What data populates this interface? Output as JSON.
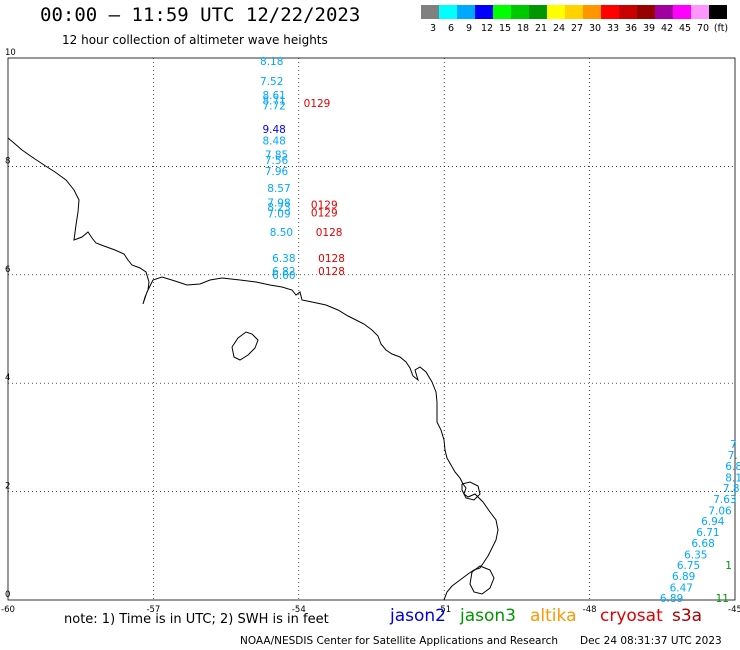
{
  "header": {
    "title": "00:00 – 11:59 UTC 12/22/2023",
    "subtitle": "12 hour collection of altimeter wave heights"
  },
  "legend": {
    "unit": "(ft)",
    "bins": [
      {
        "label": "3",
        "color": "#808080"
      },
      {
        "label": "6",
        "color": "#00ffff"
      },
      {
        "label": "9",
        "color": "#00a8ff"
      },
      {
        "label": "12",
        "color": "#0000ff"
      },
      {
        "label": "15",
        "color": "#00ff00"
      },
      {
        "label": "18",
        "color": "#00c800"
      },
      {
        "label": "21",
        "color": "#009600"
      },
      {
        "label": "24",
        "color": "#ffff00"
      },
      {
        "label": "27",
        "color": "#ffd200"
      },
      {
        "label": "30",
        "color": "#ff9600"
      },
      {
        "label": "33",
        "color": "#ff0000"
      },
      {
        "label": "36",
        "color": "#c80000"
      },
      {
        "label": "39",
        "color": "#960000"
      },
      {
        "label": "42",
        "color": "#a000a0"
      },
      {
        "label": "45",
        "color": "#ff00ff"
      },
      {
        "label": "70",
        "color": "#ff96ff"
      },
      {
        "label": "",
        "color": "#000000"
      }
    ]
  },
  "map": {
    "lon_range": [
      -60,
      -45
    ],
    "lat_range": [
      0,
      10
    ],
    "lon_ticks": [
      "-60",
      "-57",
      "-54",
      "-51",
      "-48",
      "-45"
    ],
    "lat_ticks": [
      "0",
      "2",
      "4",
      "6",
      "8",
      "10"
    ]
  },
  "observations": [
    {
      "text": "8.18",
      "lon": -54.8,
      "lat": 9.87,
      "color": "#00a8ff"
    },
    {
      "text": "7.52",
      "lon": -54.8,
      "lat": 9.5,
      "color": "#00a8ff"
    },
    {
      "text": "8.61",
      "lon": -54.75,
      "lat": 9.24,
      "color": "#00a8ff"
    },
    {
      "text": "8.71",
      "lon": -54.75,
      "lat": 9.14,
      "color": "#00a8ff"
    },
    {
      "text": "7.72",
      "lon": -54.75,
      "lat": 9.05,
      "color": "#00a8ff"
    },
    {
      "text": "0129",
      "lon": -53.9,
      "lat": 9.1,
      "color": "#e00000"
    },
    {
      "text": "9.48",
      "lon": -54.75,
      "lat": 8.62,
      "color": "#0000ff"
    },
    {
      "text": "8.48",
      "lon": -54.75,
      "lat": 8.4,
      "color": "#00a8ff"
    },
    {
      "text": "7.85",
      "lon": -54.7,
      "lat": 8.15,
      "color": "#00a8ff"
    },
    {
      "text": "7.56",
      "lon": -54.7,
      "lat": 8.04,
      "color": "#00a8ff"
    },
    {
      "text": "7.96",
      "lon": -54.7,
      "lat": 7.84,
      "color": "#00a8ff"
    },
    {
      "text": "8.57",
      "lon": -54.65,
      "lat": 7.53,
      "color": "#00a8ff"
    },
    {
      "text": "7.98",
      "lon": -54.65,
      "lat": 7.26,
      "color": "#00a8ff"
    },
    {
      "text": "8.23",
      "lon": -54.65,
      "lat": 7.18,
      "color": "#00a8ff"
    },
    {
      "text": "7.09",
      "lon": -54.65,
      "lat": 7.06,
      "color": "#00a8ff"
    },
    {
      "text": "0129",
      "lon": -53.75,
      "lat": 7.22,
      "color": "#e00000"
    },
    {
      "text": "0129",
      "lon": -53.75,
      "lat": 7.08,
      "color": "#e00000"
    },
    {
      "text": "8.50",
      "lon": -54.6,
      "lat": 6.72,
      "color": "#00a8ff"
    },
    {
      "text": "0128",
      "lon": -53.65,
      "lat": 6.72,
      "color": "#e00000"
    },
    {
      "text": "6.38",
      "lon": -54.55,
      "lat": 6.24,
      "color": "#00a8ff"
    },
    {
      "text": "0128",
      "lon": -53.6,
      "lat": 6.24,
      "color": "#e00000"
    },
    {
      "text": "6.82",
      "lon": -54.55,
      "lat": 6.0,
      "color": "#00a8ff"
    },
    {
      "text": "6.60",
      "lon": -54.55,
      "lat": 5.92,
      "color": "#00a8ff"
    },
    {
      "text": "0128",
      "lon": -53.6,
      "lat": 6.0,
      "color": "#e00000"
    },
    {
      "text": "7",
      "lon": -45.1,
      "lat": 2.8,
      "color": "#00a8ff"
    },
    {
      "text": "7.",
      "lon": -45.15,
      "lat": 2.6,
      "color": "#00a8ff"
    },
    {
      "text": "6.8",
      "lon": -45.2,
      "lat": 2.4,
      "color": "#00a8ff"
    },
    {
      "text": "8.1",
      "lon": -45.2,
      "lat": 2.19,
      "color": "#00a8ff"
    },
    {
      "text": "7.8",
      "lon": -45.25,
      "lat": 1.99,
      "color": "#00a8ff"
    },
    {
      "text": "7.63",
      "lon": -45.45,
      "lat": 1.79,
      "color": "#00a8ff"
    },
    {
      "text": "7.06",
      "lon": -45.55,
      "lat": 1.58,
      "color": "#00a8ff"
    },
    {
      "text": "6.94",
      "lon": -45.7,
      "lat": 1.38,
      "color": "#00a8ff"
    },
    {
      "text": "6.71",
      "lon": -45.8,
      "lat": 1.18,
      "color": "#00a8ff"
    },
    {
      "text": "6.68",
      "lon": -45.9,
      "lat": 0.98,
      "color": "#00a8ff"
    },
    {
      "text": "6.35",
      "lon": -46.05,
      "lat": 0.77,
      "color": "#00a8ff"
    },
    {
      "text": "6.75",
      "lon": -46.2,
      "lat": 0.57,
      "color": "#00a8ff"
    },
    {
      "text": "1",
      "lon": -45.2,
      "lat": 0.57,
      "color": "#009600"
    },
    {
      "text": "6.89",
      "lon": -46.3,
      "lat": 0.37,
      "color": "#00a8ff"
    },
    {
      "text": "6.47",
      "lon": -46.35,
      "lat": 0.16,
      "color": "#00a8ff"
    },
    {
      "text": "6.89",
      "lon": -46.55,
      "lat": -0.04,
      "color": "#00a8ff"
    },
    {
      "text": "11",
      "lon": -45.4,
      "lat": -0.04,
      "color": "#009600"
    }
  ],
  "footer": {
    "note": "note:  1) Time is in UTC;  2) SWH is in feet",
    "satellites": [
      {
        "name": "jason2",
        "color": "#0000dd"
      },
      {
        "name": "jason3",
        "color": "#009600"
      },
      {
        "name": "altika",
        "color": "#ff9600"
      },
      {
        "name": "cryosat",
        "color": "#e00000"
      },
      {
        "name": "s3a",
        "color": "#aa0000"
      }
    ],
    "credit": "NOAA/NESDIS Center for Satellite Applications and Research",
    "generated": "Dec 24 08:31:37 UTC 2023"
  }
}
